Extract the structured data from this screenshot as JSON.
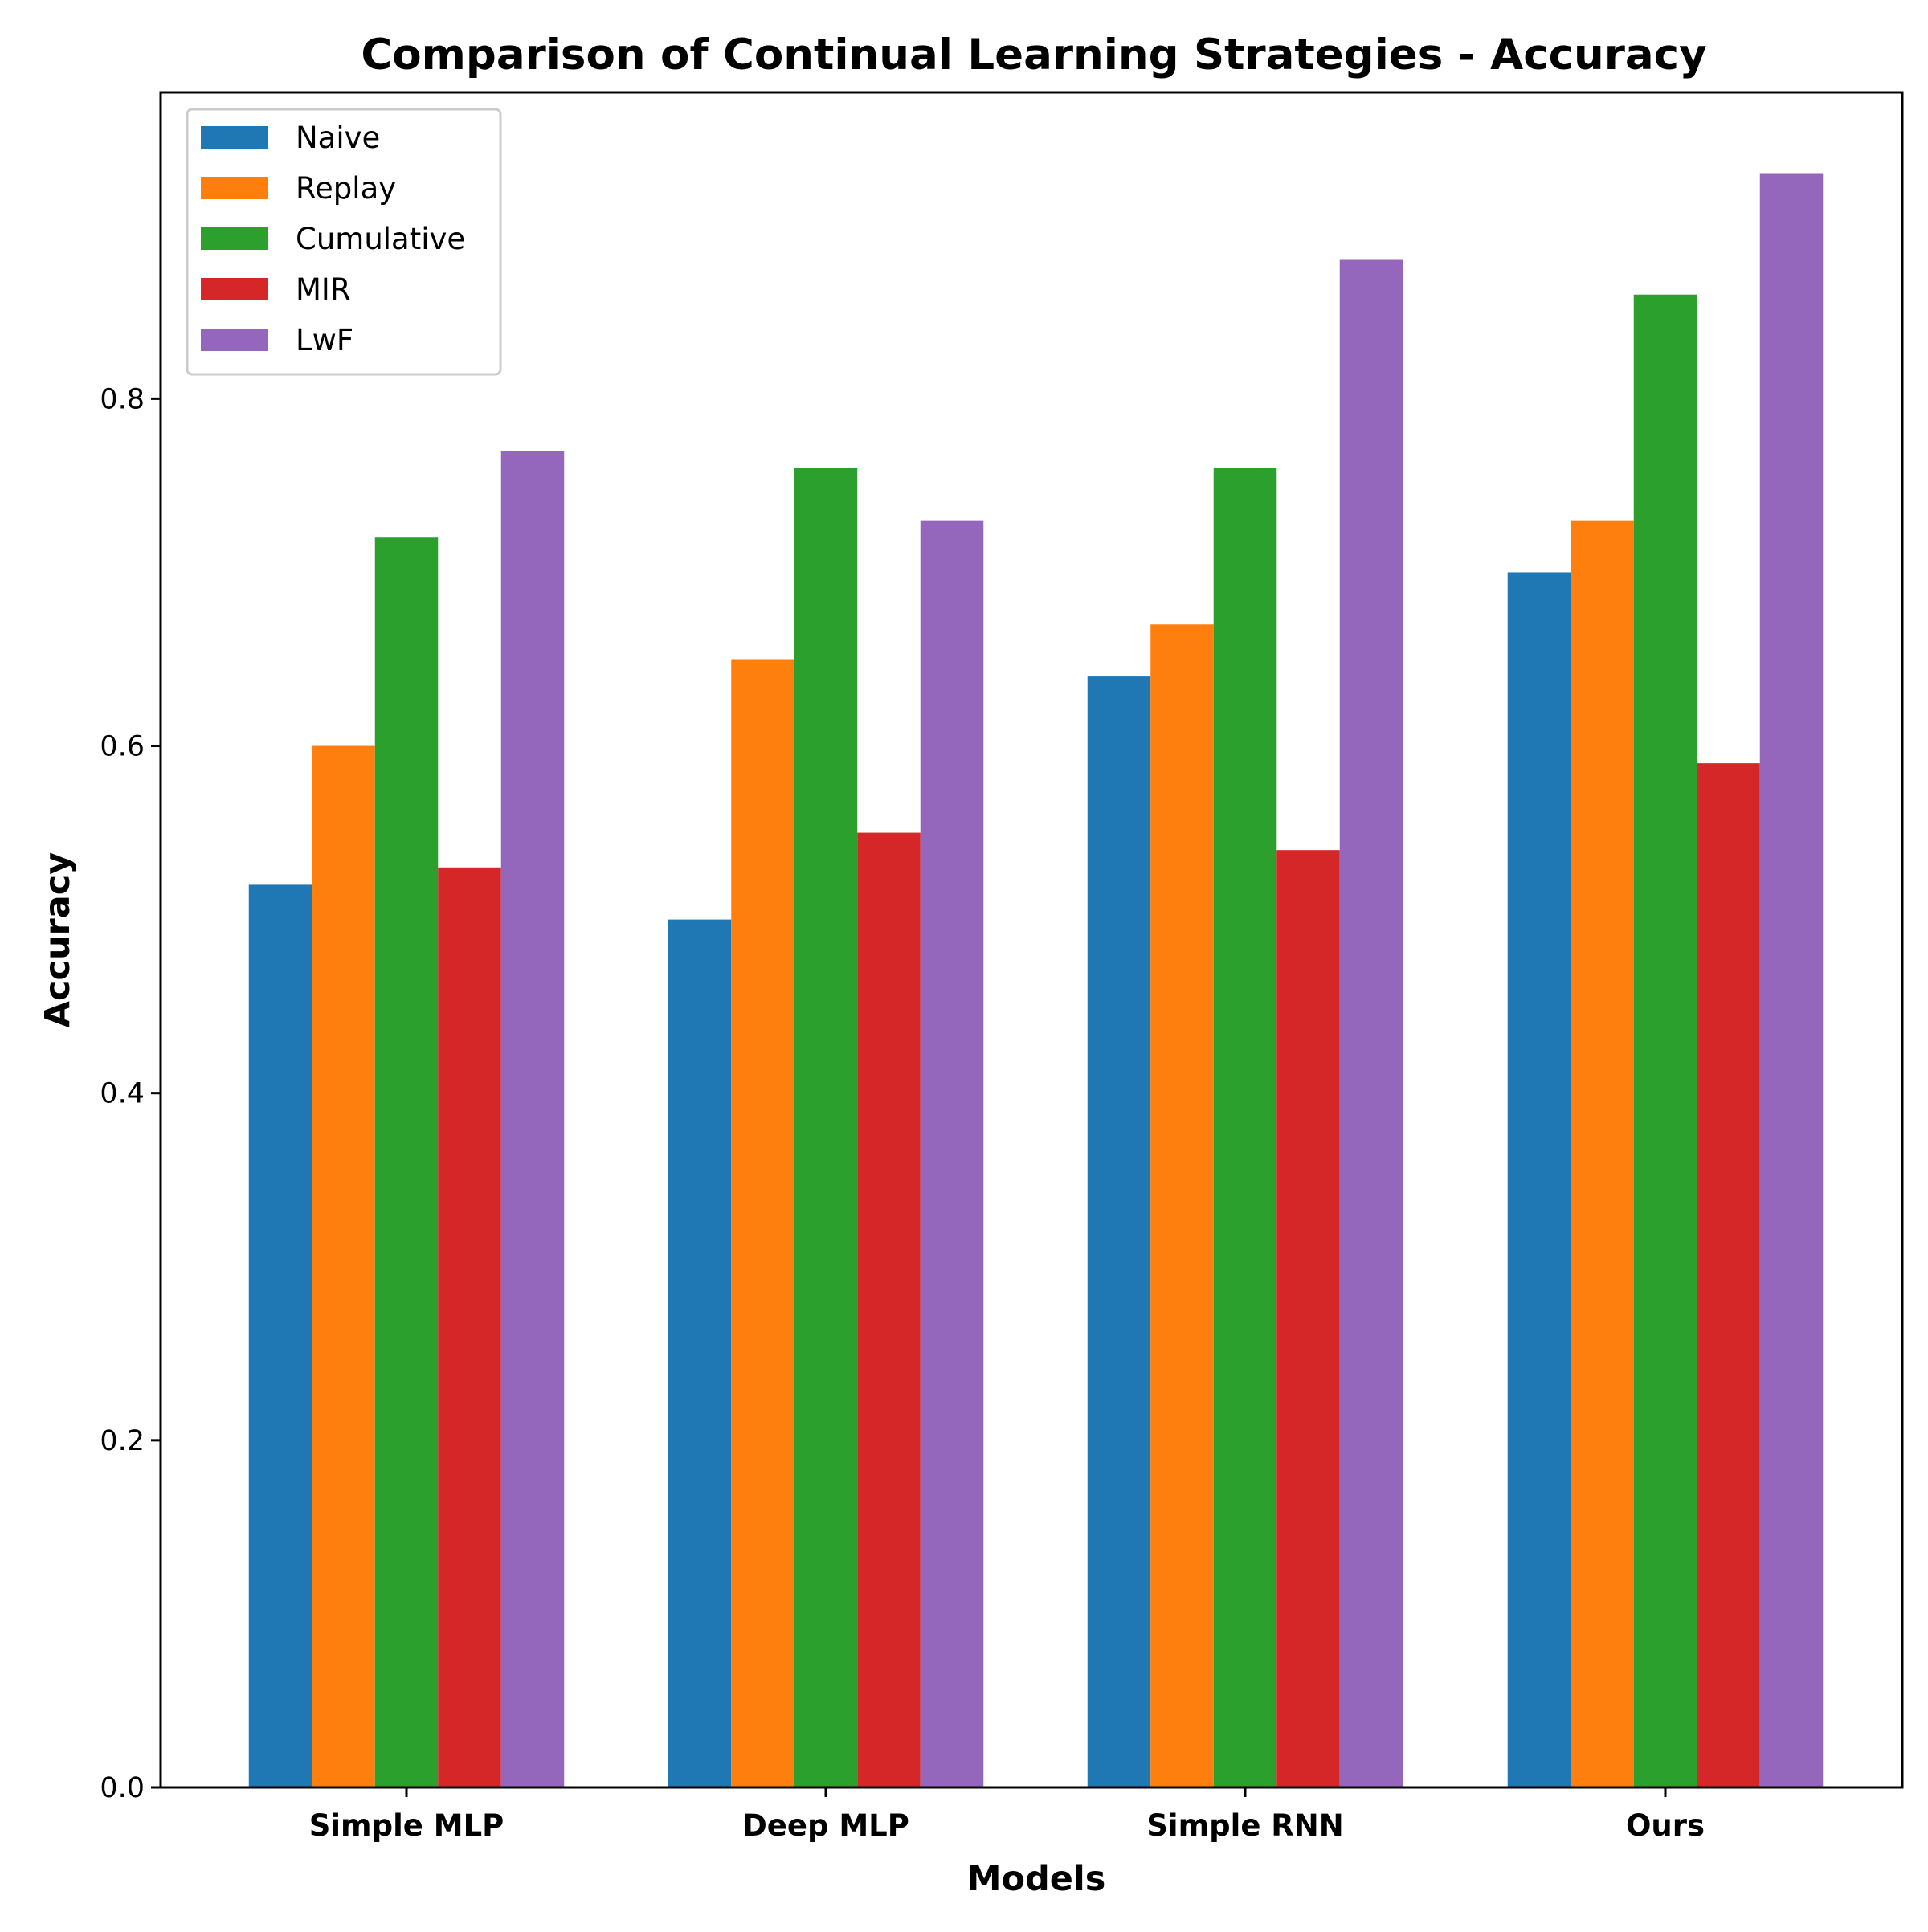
{
  "chart_data": {
    "type": "bar",
    "title": "Comparison of Continual Learning Strategies - Accuracy",
    "xlabel": "Models",
    "ylabel": "Accuracy",
    "categories": [
      "Simple MLP",
      "Deep MLP",
      "Simple RNN",
      "Ours"
    ],
    "series": [
      {
        "name": "Naive",
        "color": "#1f77b4",
        "values": [
          0.52,
          0.5,
          0.64,
          0.7
        ]
      },
      {
        "name": "Replay",
        "color": "#ff7f0e",
        "values": [
          0.6,
          0.65,
          0.67,
          0.73
        ]
      },
      {
        "name": "Cumulative",
        "color": "#2ca02c",
        "values": [
          0.72,
          0.76,
          0.76,
          0.86
        ]
      },
      {
        "name": "MIR",
        "color": "#d62728",
        "values": [
          0.53,
          0.55,
          0.54,
          0.59
        ]
      },
      {
        "name": "LwF",
        "color": "#9467bd",
        "values": [
          0.77,
          0.73,
          0.88,
          0.93
        ]
      }
    ],
    "ylim": [
      0.0,
      0.9765
    ],
    "yticks": [
      "0.0",
      "0.2",
      "0.4",
      "0.6",
      "0.8"
    ],
    "grid": false,
    "legend_position": "top-left"
  }
}
